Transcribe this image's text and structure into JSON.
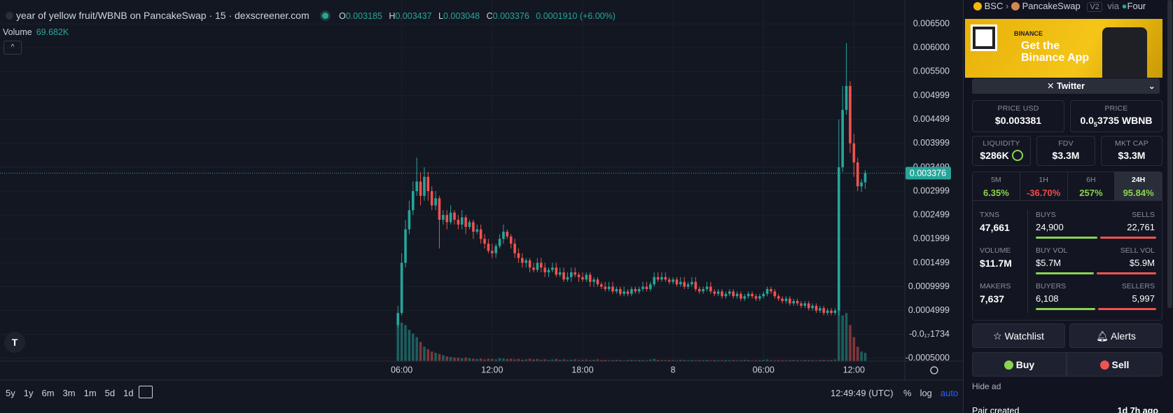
{
  "header": {
    "title": "year of yellow fruit/WBNB on PancakeSwap · 15 · dexscreener.com",
    "o": "O",
    "h": "H",
    "l": "L",
    "c": "C",
    "change": "0.0001910 (+6.00%)",
    "volume_name": "Volume",
    "volume_value": "69.682K"
  },
  "chart_data": {
    "type": "candlestick",
    "up_color": "#26a69a",
    "down_color": "#ef5350",
    "grid": true,
    "xlim": [
      -105.6,
      134.5
    ],
    "xticks": [
      {
        "value": 1,
        "label": "06:00"
      },
      {
        "value": 25,
        "label": "12:00"
      },
      {
        "value": 49,
        "label": "18:00"
      },
      {
        "value": 73,
        "label": "8"
      },
      {
        "value": 97,
        "label": "06:00"
      },
      {
        "value": 121,
        "label": "12:00"
      }
    ],
    "ylim": [
      -0.00056,
      0.007
    ],
    "yticks": [
      {
        "value": 0.0065,
        "label": "0.006500"
      },
      {
        "value": 0.006,
        "label": "0.006000"
      },
      {
        "value": 0.0055,
        "label": "0.005500"
      },
      {
        "value": 0.004999,
        "label": "0.004999"
      },
      {
        "value": 0.004499,
        "label": "0.004499"
      },
      {
        "value": 0.003999,
        "label": "0.003999"
      },
      {
        "value": 0.003499,
        "label": "0.003499"
      },
      {
        "value": 0.002999,
        "label": "0.002999"
      },
      {
        "value": 0.002499,
        "label": "0.002499"
      },
      {
        "value": 0.001999,
        "label": "0.001999"
      },
      {
        "value": 0.001499,
        "label": "0.001499"
      },
      {
        "value": 0.0009999,
        "label": "0.0009999"
      },
      {
        "value": 0.0004999,
        "label": "0.0004999"
      },
      {
        "value": -1.734e-18,
        "label": "-0.0₁₇1734"
      },
      {
        "value": -0.0005,
        "label": "-0.0005000"
      }
    ],
    "volume_lim": [
      0,
      3000
    ],
    "open": [
      0.0002,
      0.00045,
      0.0015,
      0.0022,
      0.0026,
      0.003,
      0.0032,
      0.0029,
      0.0033,
      0.003,
      0.0027,
      0.00285,
      0.0024,
      0.0025,
      0.00235,
      0.00255,
      0.0024,
      0.0023,
      0.00245,
      0.00225,
      0.00235,
      0.00215,
      0.0022,
      0.002,
      0.0019,
      0.00175,
      0.0017,
      0.00185,
      0.002,
      0.00215,
      0.00205,
      0.0019,
      0.0017,
      0.0016,
      0.0015,
      0.00155,
      0.0014,
      0.00135,
      0.0015,
      0.0014,
      0.0013,
      0.00135,
      0.0014,
      0.00125,
      0.0013,
      0.00115,
      0.0012,
      0.0013,
      0.00125,
      0.0012,
      0.00115,
      0.00125,
      0.0011,
      0.00115,
      0.00105,
      0.001,
      0.00095,
      0.001,
      0.0009,
      0.00095,
      0.00085,
      0.0009,
      0.00085,
      0.00095,
      0.0009,
      0.00095,
      0.001,
      0.00095,
      0.00105,
      0.0012,
      0.00115,
      0.0012,
      0.00115,
      0.0011,
      0.00115,
      0.00105,
      0.0011,
      0.001,
      0.00105,
      0.0011,
      0.00095,
      0.0009,
      0.00095,
      0.001,
      0.0009,
      0.00085,
      0.0009,
      0.0008,
      0.00085,
      0.0009,
      0.0008,
      0.00085,
      0.00075,
      0.0008,
      0.00085,
      0.0008,
      0.00075,
      0.0008,
      0.00085,
      0.00095,
      0.0009,
      0.0008,
      0.00075,
      0.0007,
      0.00075,
      0.00065,
      0.0007,
      0.00065,
      0.0006,
      0.00065,
      0.00055,
      0.0006,
      0.0005,
      0.00055,
      0.00045,
      0.0005,
      0.00045,
      0.0005,
      0.0035,
      0.0047,
      0.0052,
      0.004,
      0.0036,
      0.0031,
      0.003185
    ],
    "high": [
      0.0006,
      0.0017,
      0.0024,
      0.0028,
      0.0032,
      0.0037,
      0.0034,
      0.0035,
      0.0034,
      0.0031,
      0.003,
      0.0029,
      0.0026,
      0.0026,
      0.0027,
      0.0026,
      0.0025,
      0.0026,
      0.0025,
      0.0024,
      0.0024,
      0.0023,
      0.0023,
      0.0021,
      0.002,
      0.0019,
      0.0019,
      0.0021,
      0.0023,
      0.0022,
      0.0021,
      0.002,
      0.0018,
      0.0017,
      0.0016,
      0.0016,
      0.0015,
      0.0016,
      0.0016,
      0.0015,
      0.0014,
      0.0015,
      0.0015,
      0.0014,
      0.0014,
      0.0013,
      0.0014,
      0.0014,
      0.0013,
      0.0013,
      0.0013,
      0.0013,
      0.0012,
      0.0012,
      0.0011,
      0.0011,
      0.0011,
      0.0011,
      0.001,
      0.001,
      0.001,
      0.00095,
      0.001,
      0.001,
      0.001,
      0.0011,
      0.0011,
      0.0011,
      0.0013,
      0.0013,
      0.0013,
      0.0013,
      0.0012,
      0.0012,
      0.0012,
      0.0012,
      0.0012,
      0.0011,
      0.0012,
      0.0012,
      0.001,
      0.001,
      0.0011,
      0.0011,
      0.00095,
      0.00095,
      0.00095,
      0.0009,
      0.00095,
      0.00095,
      0.0009,
      0.0009,
      0.00085,
      0.0009,
      0.0009,
      0.00085,
      0.00085,
      0.0009,
      0.001,
      0.001,
      0.00095,
      0.00085,
      0.0008,
      0.0008,
      0.0008,
      0.00075,
      0.00075,
      0.0007,
      0.0007,
      0.0007,
      0.00065,
      0.00065,
      0.0006,
      0.0006,
      0.00055,
      0.00055,
      0.00055,
      0.0045,
      0.0052,
      0.0061,
      0.0053,
      0.0042,
      0.0037,
      0.00325,
      0.003437
    ],
    "low": [
      0.00015,
      0.0004,
      0.0014,
      0.0021,
      0.0025,
      0.0029,
      0.0027,
      0.0028,
      0.0028,
      0.0026,
      0.0026,
      0.0018,
      0.0023,
      0.0022,
      0.0023,
      0.0023,
      0.0022,
      0.0022,
      0.0021,
      0.0022,
      0.002,
      0.0021,
      0.0019,
      0.0018,
      0.0017,
      0.0016,
      0.0016,
      0.0018,
      0.0019,
      0.002,
      0.0018,
      0.0016,
      0.0015,
      0.0014,
      0.0014,
      0.0013,
      0.0013,
      0.0013,
      0.0013,
      0.0012,
      0.0012,
      0.0013,
      0.0012,
      0.0012,
      0.0011,
      0.0011,
      0.0011,
      0.0012,
      0.0011,
      0.0011,
      0.0011,
      0.001,
      0.001,
      0.001,
      0.00095,
      0.0009,
      0.0009,
      0.00085,
      0.00085,
      0.0008,
      0.0008,
      0.0008,
      0.0008,
      0.00085,
      0.00085,
      0.0009,
      0.0009,
      0.0009,
      0.001,
      0.0011,
      0.0011,
      0.0011,
      0.00105,
      0.00105,
      0.001,
      0.001,
      0.00095,
      0.00095,
      0.001,
      0.0009,
      0.00085,
      0.00085,
      0.0009,
      0.00085,
      0.0008,
      0.0008,
      0.00075,
      0.00075,
      0.0008,
      0.00075,
      0.00075,
      0.0007,
      0.0007,
      0.00075,
      0.00075,
      0.0007,
      0.0007,
      0.00075,
      0.0008,
      0.00085,
      0.00075,
      0.0007,
      0.00065,
      0.00065,
      0.0006,
      0.0006,
      0.0006,
      0.00055,
      0.00055,
      0.0005,
      0.0005,
      0.00045,
      0.00045,
      0.0004,
      0.0004,
      0.0004,
      0.0004,
      0.0004,
      0.0034,
      0.0046,
      0.0038,
      0.0033,
      0.003,
      0.00298,
      0.003048
    ],
    "close": [
      0.00045,
      0.0015,
      0.0022,
      0.0026,
      0.003,
      0.0032,
      0.0029,
      0.0033,
      0.003,
      0.0027,
      0.00285,
      0.0024,
      0.0025,
      0.00235,
      0.00255,
      0.0024,
      0.0023,
      0.00245,
      0.00225,
      0.00235,
      0.00215,
      0.0022,
      0.002,
      0.0019,
      0.00175,
      0.0017,
      0.00185,
      0.002,
      0.00215,
      0.00205,
      0.0019,
      0.0017,
      0.0016,
      0.0015,
      0.00155,
      0.0014,
      0.00135,
      0.0015,
      0.0014,
      0.0013,
      0.00135,
      0.0014,
      0.00125,
      0.0013,
      0.00115,
      0.0012,
      0.0013,
      0.00125,
      0.0012,
      0.00115,
      0.00125,
      0.0011,
      0.00115,
      0.00105,
      0.001,
      0.00095,
      0.001,
      0.0009,
      0.00095,
      0.00085,
      0.0009,
      0.00085,
      0.00095,
      0.0009,
      0.00095,
      0.001,
      0.00095,
      0.00105,
      0.0012,
      0.00115,
      0.0012,
      0.00115,
      0.0011,
      0.00115,
      0.00105,
      0.0011,
      0.001,
      0.00105,
      0.0011,
      0.00095,
      0.0009,
      0.00095,
      0.001,
      0.0009,
      0.00085,
      0.0009,
      0.0008,
      0.00085,
      0.0009,
      0.0008,
      0.00085,
      0.00075,
      0.0008,
      0.00085,
      0.0008,
      0.00075,
      0.0008,
      0.00085,
      0.00095,
      0.0009,
      0.0008,
      0.00075,
      0.0007,
      0.00075,
      0.00065,
      0.0007,
      0.00065,
      0.0006,
      0.00065,
      0.00055,
      0.0006,
      0.0005,
      0.00055,
      0.00045,
      0.0005,
      0.00045,
      0.0005,
      0.0035,
      0.0047,
      0.0052,
      0.004,
      0.0036,
      0.0031,
      0.003185,
      0.003376
    ],
    "volume": [
      380,
      320,
      300,
      260,
      230,
      200,
      160,
      120,
      100,
      80,
      70,
      60,
      50,
      40,
      35,
      30,
      30,
      25,
      30,
      25,
      20,
      18,
      22,
      15,
      20,
      18,
      15,
      25,
      22,
      18,
      20,
      15,
      18,
      12,
      15,
      20,
      14,
      18,
      12,
      15,
      10,
      14,
      18,
      12,
      15,
      10,
      12,
      15,
      10,
      12,
      14,
      10,
      12,
      15,
      10,
      12,
      8,
      10,
      12,
      10,
      8,
      10,
      12,
      9,
      11,
      10,
      8,
      14,
      20,
      12,
      10,
      9,
      11,
      10,
      8,
      12,
      10,
      9,
      11,
      8,
      10,
      9,
      12,
      8,
      10,
      9,
      8,
      11,
      9,
      10,
      8,
      9,
      12,
      10,
      8,
      9,
      10,
      11,
      14,
      9,
      8,
      10,
      9,
      8,
      10,
      11,
      9,
      8,
      12,
      10,
      9,
      8,
      10,
      12,
      9,
      11,
      14,
      420,
      380,
      400,
      300,
      200,
      120,
      80,
      69.682
    ]
  },
  "toolbar": {
    "ranges": [
      "5y",
      "1y",
      "6m",
      "3m",
      "1m",
      "5d",
      "1d"
    ],
    "clock": "12:49:49 (UTC)",
    "scale_options": [
      "%",
      "log",
      "auto"
    ]
  },
  "sidebar": {
    "breadcrumb": {
      "chain": "BSC",
      "dex": "PancakeSwap",
      "version": "V2",
      "via": "via",
      "launchpad": "Four"
    },
    "ad": {
      "brand": "BINANCE",
      "headline": "Get the Binance App"
    },
    "social": "Twitter",
    "price_usd": {
      "label": "PRICE USD",
      "value": "$0.003381"
    },
    "price_native": {
      "label": "PRICE",
      "prefix": "0.0",
      "zeros": "5",
      "rest": "3735 WBNB"
    },
    "liquidity": {
      "label": "LIQUIDITY",
      "value": "$286K"
    },
    "fdv": {
      "label": "FDV",
      "value": "$3.3M"
    },
    "mkt_cap": {
      "label": "MKT CAP",
      "value": "$3.3M"
    },
    "changes": [
      {
        "period": "5M",
        "value": "6.35%"
      },
      {
        "period": "1H",
        "value": "-36.70%"
      },
      {
        "period": "6H",
        "value": "257%"
      },
      {
        "period": "24H",
        "value": "95.84%"
      }
    ],
    "txns": {
      "label": "TXNS",
      "value": "47,661",
      "buys": {
        "label": "BUYS",
        "value": "24,900"
      },
      "sells": {
        "label": "SELLS",
        "value": "22,761"
      }
    },
    "volume": {
      "label": "VOLUME",
      "value": "$11.7M",
      "buy": {
        "label": "BUY VOL",
        "value": "$5.7M"
      },
      "sell": {
        "label": "SELL VOL",
        "value": "$5.9M"
      }
    },
    "makers": {
      "label": "MAKERS",
      "value": "7,637",
      "buyers": {
        "label": "BUYERS",
        "value": "6,108"
      },
      "sellers": {
        "label": "SELLERS",
        "value": "5,997"
      }
    },
    "buttons": {
      "watchlist": "Watchlist",
      "alerts": "Alerts",
      "buy": "Buy",
      "sell": "Sell"
    },
    "hide_ad": "Hide ad",
    "pair_created": {
      "label": "Pair created",
      "value": "1d 7h ago"
    }
  }
}
